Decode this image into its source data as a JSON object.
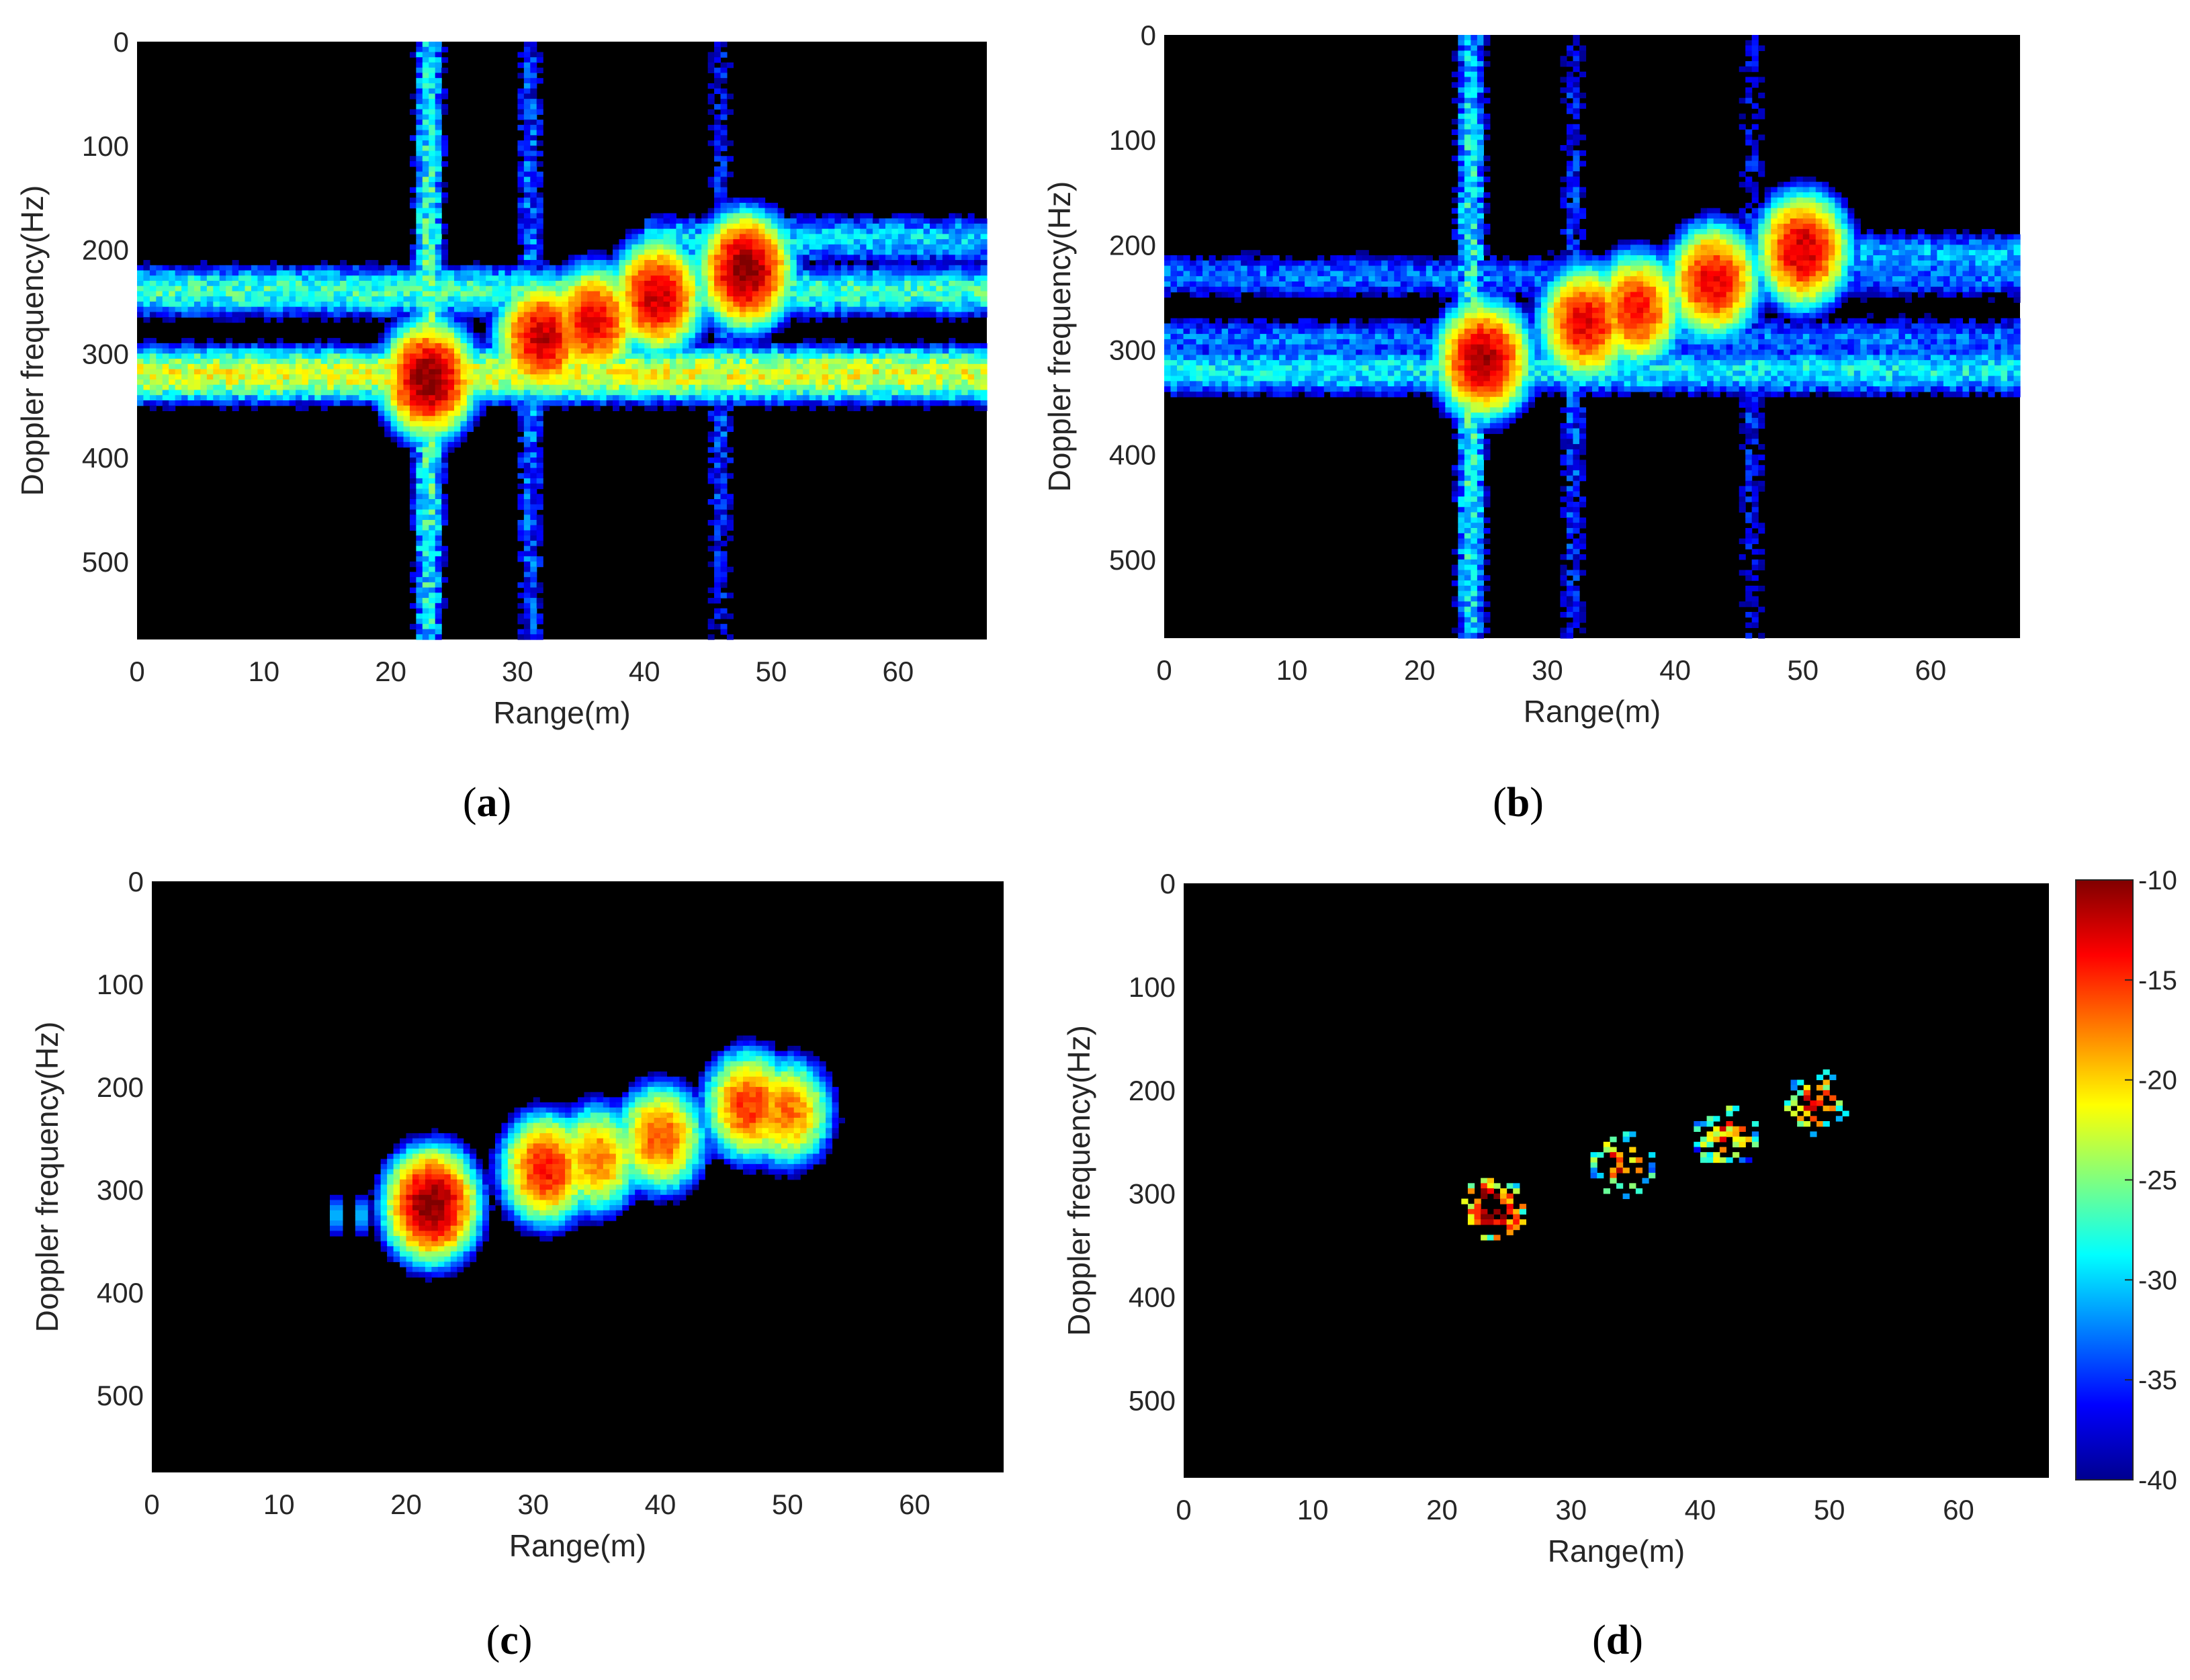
{
  "figure": {
    "colormap": "jet",
    "background": "#000000",
    "tick_color": "#262626"
  },
  "chart_data": [
    {
      "id": "a",
      "type": "heatmap",
      "panel_label": "a",
      "xlabel": "Range(m)",
      "ylabel": "Doppler frequency(Hz)",
      "xlim": [
        0,
        67
      ],
      "ylim": [
        0,
        575
      ],
      "y_reversed": true,
      "xticks": [
        0,
        10,
        20,
        30,
        40,
        50,
        60
      ],
      "yticks": [
        0,
        100,
        200,
        300,
        400,
        500
      ],
      "clim": [
        -40,
        -10
      ],
      "target_blobs": [
        {
          "range": 23,
          "doppler": 325,
          "peak_db": -10
        },
        {
          "range": 32,
          "doppler": 285,
          "peak_db": -12
        },
        {
          "range": 36,
          "doppler": 270,
          "peak_db": -13
        },
        {
          "range": 41,
          "doppler": 245,
          "peak_db": -12
        },
        {
          "range": 48,
          "doppler": 220,
          "peak_db": -10
        }
      ],
      "clutter_bands": [
        {
          "doppler": 320,
          "range_from": 0,
          "range_to": 67,
          "level_db": -22
        },
        {
          "doppler": 240,
          "range_from": 0,
          "range_to": 67,
          "level_db": -27
        },
        {
          "doppler": 190,
          "range_from": 40,
          "range_to": 67,
          "level_db": -30
        }
      ],
      "vertical_streaks": [
        {
          "range": 23,
          "level_db": -26
        },
        {
          "range": 31,
          "level_db": -32
        },
        {
          "range": 46,
          "level_db": -34
        }
      ]
    },
    {
      "id": "b",
      "type": "heatmap",
      "panel_label": "b",
      "xlabel": "Range(m)",
      "ylabel": "Doppler frequency(Hz)",
      "xlim": [
        0,
        67
      ],
      "ylim": [
        0,
        575
      ],
      "y_reversed": true,
      "xticks": [
        0,
        10,
        20,
        30,
        40,
        50,
        60
      ],
      "yticks": [
        0,
        100,
        200,
        300,
        400,
        500
      ],
      "clim": [
        -40,
        -10
      ],
      "target_blobs": [
        {
          "range": 25,
          "doppler": 310,
          "peak_db": -11
        },
        {
          "range": 33,
          "doppler": 275,
          "peak_db": -13
        },
        {
          "range": 37,
          "doppler": 262,
          "peak_db": -14
        },
        {
          "range": 43,
          "doppler": 235,
          "peak_db": -13
        },
        {
          "range": 50,
          "doppler": 205,
          "peak_db": -12
        }
      ],
      "clutter_bands": [
        {
          "doppler": 320,
          "range_from": 0,
          "range_to": 67,
          "level_db": -29
        },
        {
          "doppler": 290,
          "range_from": 0,
          "range_to": 67,
          "level_db": -33
        },
        {
          "doppler": 230,
          "range_from": 0,
          "range_to": 67,
          "level_db": -33
        },
        {
          "doppler": 210,
          "range_from": 50,
          "range_to": 67,
          "level_db": -31
        }
      ],
      "vertical_streaks": [
        {
          "range": 24,
          "level_db": -27
        },
        {
          "range": 32,
          "level_db": -34
        },
        {
          "range": 46,
          "level_db": -35
        }
      ]
    },
    {
      "id": "c",
      "type": "heatmap",
      "panel_label": "c",
      "xlabel": "Range(m)",
      "ylabel": "Doppler frequency(Hz)",
      "xlim": [
        0,
        67
      ],
      "ylim": [
        0,
        575
      ],
      "y_reversed": true,
      "xticks": [
        0,
        10,
        20,
        30,
        40,
        50,
        60
      ],
      "yticks": [
        0,
        100,
        200,
        300,
        400,
        500
      ],
      "clim": [
        -40,
        -10
      ],
      "target_blobs": [
        {
          "range": 22,
          "doppler": 315,
          "peak_db": -10
        },
        {
          "range": 31,
          "doppler": 280,
          "peak_db": -14
        },
        {
          "range": 35,
          "doppler": 270,
          "peak_db": -17
        },
        {
          "range": 40,
          "doppler": 250,
          "peak_db": -16
        },
        {
          "range": 47,
          "doppler": 218,
          "peak_db": -15
        },
        {
          "range": 50,
          "doppler": 225,
          "peak_db": -17
        }
      ],
      "leading_ripple": {
        "range_from": 13,
        "range_to": 20,
        "doppler": 325,
        "level_db": -31
      },
      "clutter_bands": [],
      "vertical_streaks": []
    },
    {
      "id": "d",
      "type": "heatmap",
      "panel_label": "d",
      "xlabel": "Range(m)",
      "ylabel": "Doppler frequency(Hz)",
      "xlim": [
        0,
        67
      ],
      "ylim": [
        0,
        575
      ],
      "y_reversed": true,
      "xticks": [
        0,
        10,
        20,
        30,
        40,
        50,
        60
      ],
      "yticks": [
        0,
        100,
        200,
        300,
        400,
        500
      ],
      "clim": [
        -40,
        -10
      ],
      "sparse": true,
      "target_clusters": [
        {
          "range": 24,
          "doppler": 315,
          "peak_db": -10
        },
        {
          "range": 34,
          "doppler": 272,
          "peak_db": -16
        },
        {
          "range": 42,
          "doppler": 245,
          "peak_db": -17
        },
        {
          "range": 49,
          "doppler": 212,
          "peak_db": -16
        }
      ],
      "colorbar": {
        "ticks": [
          -10,
          -15,
          -20,
          -25,
          -30,
          -35,
          -40
        ],
        "range": [
          -40,
          -10
        ]
      }
    }
  ]
}
